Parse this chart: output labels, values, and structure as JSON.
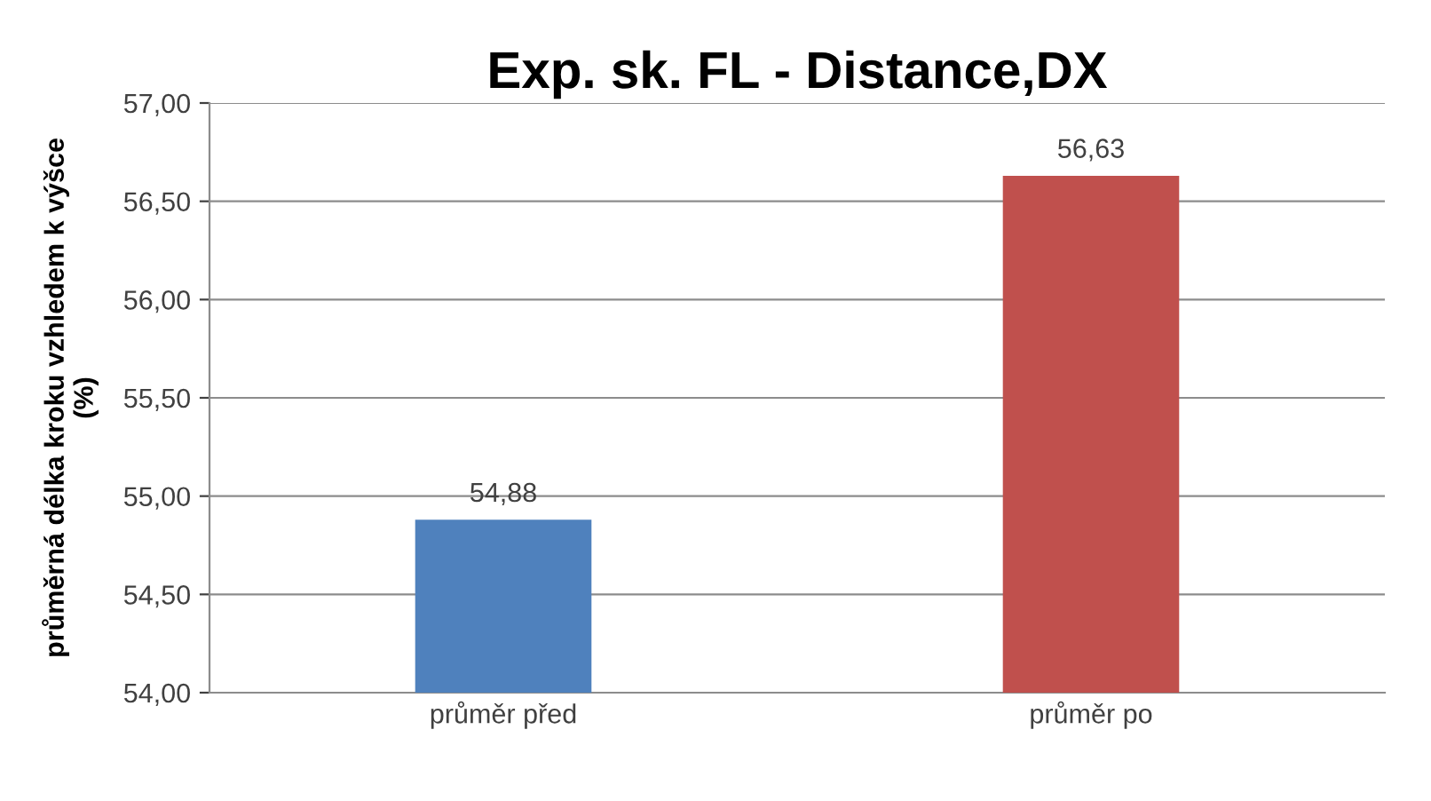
{
  "chart_data": {
    "type": "bar",
    "title": "Exp. sk. FL - Distance,DX",
    "ylabel": "průměrná délka kroku vzhledem k výšce\n(%)",
    "categories": [
      "průměr před",
      "průměr po"
    ],
    "values": [
      54.88,
      56.63
    ],
    "colors": [
      "#4f81bd",
      "#c0504d"
    ],
    "value_labels": [
      "54,88",
      "56,63"
    ],
    "ylim": [
      54,
      57
    ],
    "yticks": [
      {
        "value": 54,
        "label": "54,00"
      },
      {
        "value": 54.5,
        "label": "54,50"
      },
      {
        "value": 55,
        "label": "55,00"
      },
      {
        "value": 55.5,
        "label": "55,50"
      },
      {
        "value": 56,
        "label": "56,00"
      },
      {
        "value": 56.5,
        "label": "56,50"
      },
      {
        "value": 57,
        "label": "57,00"
      }
    ],
    "grid": "y",
    "legend": false
  }
}
